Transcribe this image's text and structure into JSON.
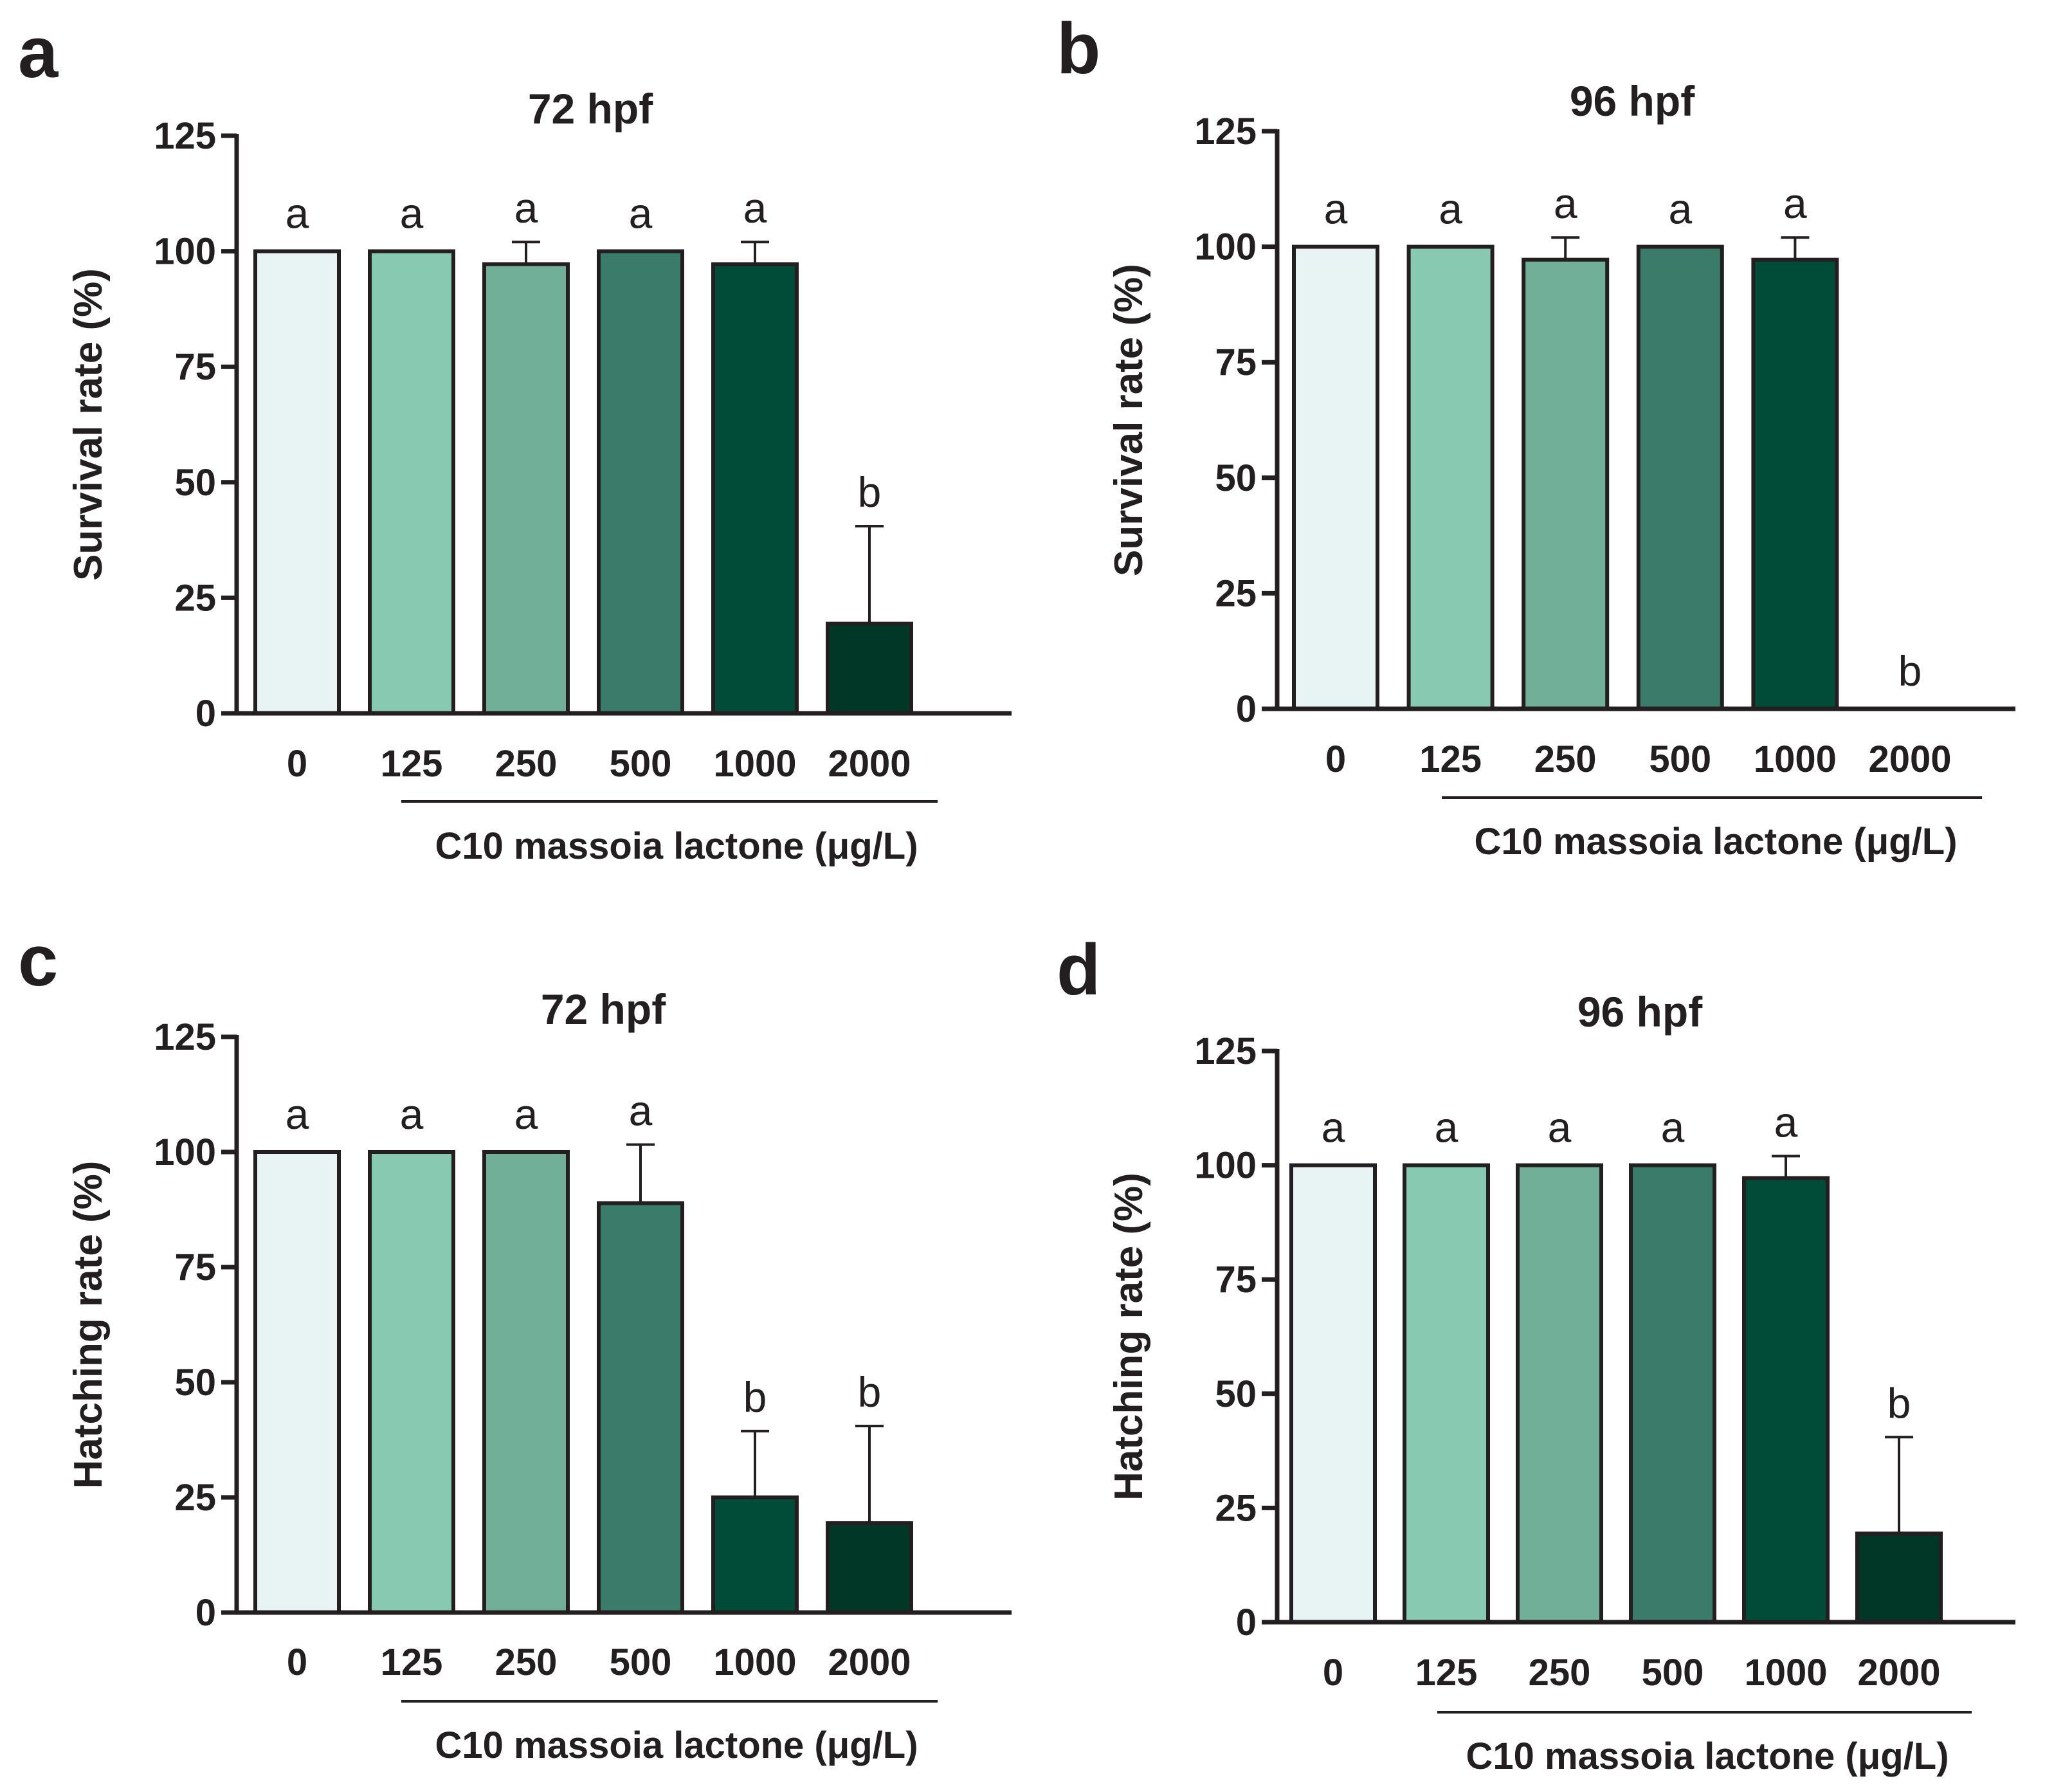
{
  "colors": {
    "axis": "#231f20",
    "bars": [
      "#e8f4f4",
      "#88c9b1",
      "#72af98",
      "#3a7b6a",
      "#004c39",
      "#003727"
    ]
  },
  "chart_data": [
    {
      "panel": "a",
      "type": "bar",
      "title": "72 hpf",
      "ylabel": "Survival rate (%)",
      "xlabel": "C10 massoia lactone (μg/L)",
      "categories": [
        "0",
        "125",
        "250",
        "500",
        "1000",
        "2000"
      ],
      "values": [
        100,
        100,
        97.2,
        100,
        97.2,
        19.4
      ],
      "errors": [
        0,
        0,
        4.8,
        0,
        4.8,
        21.1
      ],
      "significance": [
        "a",
        "a",
        "a",
        "a",
        "a",
        "b"
      ],
      "ylim": [
        0,
        125
      ],
      "yticks": [
        "0",
        "25",
        "50",
        "75",
        "100",
        "125"
      ],
      "grid": false
    },
    {
      "panel": "b",
      "type": "bar",
      "title": "96 hpf",
      "ylabel": "Survival rate (%)",
      "xlabel": "C10 massoia lactone (μg/L)",
      "categories": [
        "0",
        "125",
        "250",
        "500",
        "1000",
        "2000"
      ],
      "values": [
        100,
        100,
        97.2,
        100,
        97.2,
        0
      ],
      "errors": [
        0,
        0,
        4.8,
        0,
        4.8,
        0
      ],
      "significance": [
        "a",
        "a",
        "a",
        "a",
        "a",
        "b"
      ],
      "ylim": [
        0,
        125
      ],
      "yticks": [
        "0",
        "25",
        "50",
        "75",
        "100",
        "125"
      ],
      "grid": false
    },
    {
      "panel": "c",
      "type": "bar",
      "title": "72 hpf",
      "ylabel": "Hatching rate (%)",
      "xlabel": "C10 massoia lactone (μg/L)",
      "categories": [
        "0",
        "125",
        "250",
        "500",
        "1000",
        "2000"
      ],
      "values": [
        100,
        100,
        100,
        88.9,
        25.0,
        19.4
      ],
      "errors": [
        0,
        0,
        0,
        12.7,
        14.4,
        21.1
      ],
      "significance": [
        "a",
        "a",
        "a",
        "a",
        "b",
        "b"
      ],
      "ylim": [
        0,
        125
      ],
      "yticks": [
        "0",
        "25",
        "50",
        "75",
        "100",
        "125"
      ],
      "grid": false
    },
    {
      "panel": "d",
      "type": "bar",
      "title": "96 hpf",
      "ylabel": "Hatching rate (%)",
      "xlabel": "C10 massoia lactone (μg/L)",
      "categories": [
        "0",
        "125",
        "250",
        "500",
        "1000",
        "2000"
      ],
      "values": [
        100,
        100,
        100,
        100,
        97.2,
        19.4
      ],
      "errors": [
        0,
        0,
        0,
        0,
        4.8,
        21.1
      ],
      "significance": [
        "a",
        "a",
        "a",
        "a",
        "a",
        "b"
      ],
      "ylim": [
        0,
        125
      ],
      "yticks": [
        "0",
        "25",
        "50",
        "75",
        "100",
        "125"
      ],
      "grid": false
    }
  ]
}
